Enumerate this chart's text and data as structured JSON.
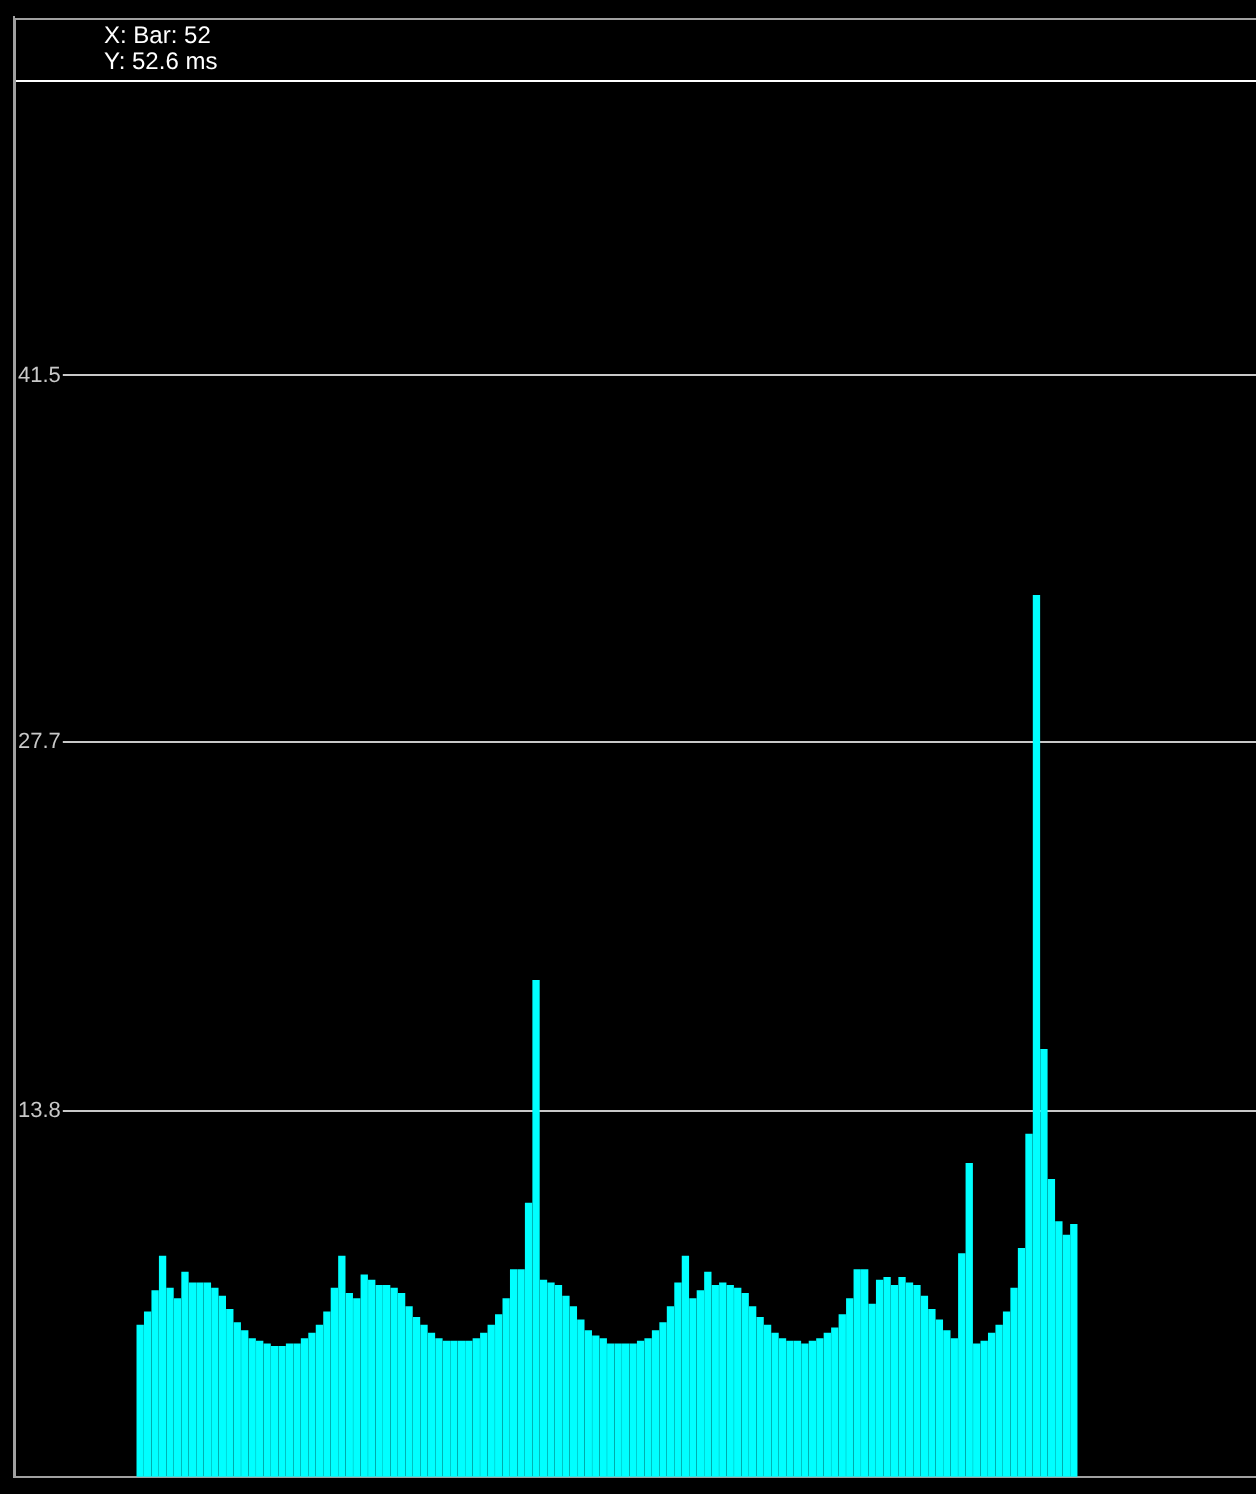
{
  "chart_data": {
    "type": "bar",
    "categories": [
      null,
      null,
      null,
      null,
      null,
      null,
      null,
      null,
      null,
      null,
      null,
      null,
      null,
      null,
      null,
      null,
      null,
      null,
      null,
      null,
      null,
      null,
      null,
      null,
      null,
      null,
      null,
      null,
      null,
      null,
      null,
      null,
      null,
      null,
      null,
      null,
      null,
      null,
      null,
      null,
      null,
      null,
      null,
      null,
      null,
      null,
      null,
      null,
      null,
      null,
      null,
      null,
      null,
      null,
      null,
      null,
      null,
      null,
      null,
      null,
      null,
      null,
      null,
      null,
      null,
      null,
      null,
      null,
      null,
      null,
      null,
      null,
      null,
      null,
      null,
      null,
      null,
      null,
      null,
      null,
      null,
      null,
      null,
      null,
      null,
      null,
      null,
      null,
      null,
      null,
      null,
      null,
      null,
      null,
      null,
      null,
      null,
      null,
      null,
      null,
      null,
      null,
      null,
      null,
      null,
      null,
      null,
      null,
      null,
      null,
      null,
      null,
      null,
      null,
      null,
      null,
      null,
      null,
      null,
      null,
      null,
      null,
      null,
      null,
      null,
      null
    ],
    "values": [
      5.7,
      6.2,
      7.0,
      8.3,
      7.1,
      6.7,
      7.7,
      7.3,
      7.3,
      7.3,
      7.1,
      6.8,
      6.3,
      5.8,
      5.5,
      5.2,
      5.1,
      5.0,
      4.9,
      4.9,
      5.0,
      5.0,
      5.2,
      5.4,
      5.7,
      6.2,
      7.1,
      8.3,
      6.9,
      6.7,
      7.6,
      7.4,
      7.2,
      7.2,
      7.1,
      6.9,
      6.4,
      6.0,
      5.7,
      5.4,
      5.2,
      5.1,
      5.1,
      5.1,
      5.1,
      5.2,
      5.4,
      5.7,
      6.1,
      6.7,
      7.8,
      7.8,
      10.3,
      18.7,
      7.4,
      7.3,
      7.2,
      6.8,
      6.4,
      5.9,
      5.5,
      5.3,
      5.2,
      5.0,
      5.0,
      5.0,
      5.0,
      5.1,
      5.2,
      5.5,
      5.8,
      6.4,
      7.3,
      8.3,
      6.7,
      7.0,
      7.7,
      7.2,
      7.3,
      7.2,
      7.1,
      6.9,
      6.4,
      6.0,
      5.7,
      5.4,
      5.2,
      5.1,
      5.1,
      5.0,
      5.1,
      5.2,
      5.4,
      5.6,
      6.1,
      6.7,
      7.8,
      7.8,
      6.5,
      7.4,
      7.5,
      7.2,
      7.5,
      7.3,
      7.2,
      6.8,
      6.3,
      5.9,
      5.5,
      5.2,
      8.4,
      11.8,
      5.0,
      5.1,
      5.4,
      5.7,
      6.2,
      7.1,
      8.6,
      12.9,
      33.2,
      16.1,
      11.2,
      9.6,
      9.1,
      9.5
    ],
    "color": "#00ffff",
    "ylim": [
      0,
      55
    ],
    "yticks": [
      13.8,
      27.7,
      41.5
    ],
    "grid": "y",
    "tick_labels": "y",
    "legend": false,
    "ref_lines": [
      {
        "axis": "y",
        "value": 52.6,
        "color": "#ffffff"
      }
    ],
    "annotations": [
      "X: Bar: 52",
      "Y: 52.6 ms"
    ]
  }
}
